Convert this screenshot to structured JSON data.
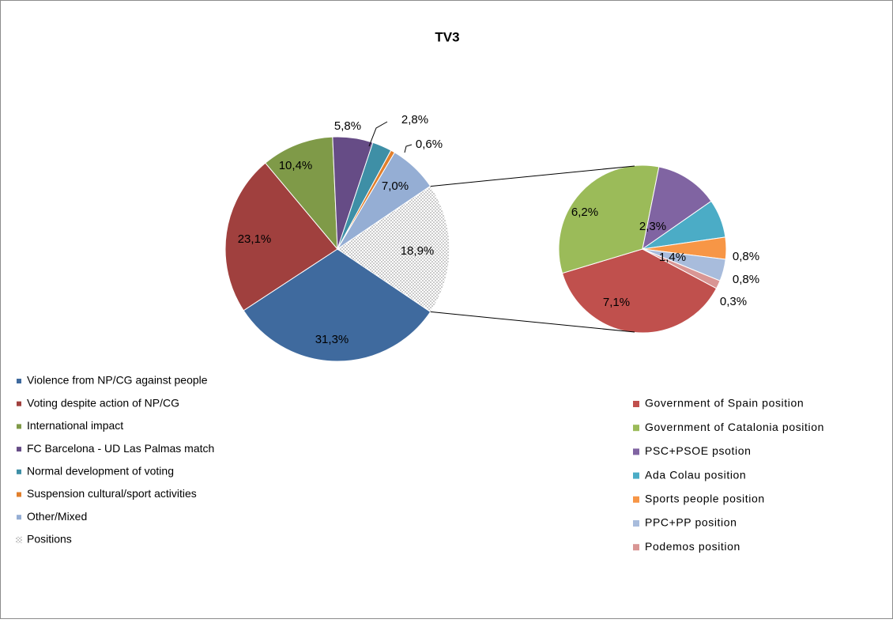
{
  "chart_data": [
    {
      "type": "pie",
      "title": "TV3",
      "categories": [
        "Violence from NP/CG against people",
        "Voting despite action of NP/CG",
        "International impact",
        "FC Barcelona - UD Las Palmas match",
        "Normal development of voting",
        "Suspension cultural/sport activities",
        "Other/Mixed",
        "Positions"
      ],
      "values": [
        31.3,
        23.1,
        10.4,
        5.8,
        2.8,
        0.6,
        7.0,
        18.9
      ],
      "value_labels": [
        "31,3%",
        "23,1%",
        "10,4%",
        "5,8%",
        "2,8%",
        "0,6%",
        "7,0%",
        "18,9%"
      ],
      "colors": [
        "#3f6a9e",
        "#a0403e",
        "#7f9a48",
        "#664c86",
        "#3e8fa6",
        "#e17f2c",
        "#95aed4",
        "dots"
      ]
    },
    {
      "type": "pie",
      "categories": [
        "Government of Spain position",
        "Government of Catalonia position",
        "PSC+PSOE psotion",
        "Ada Colau position",
        "Sports people position",
        "PPC+PP position",
        "Podemos position"
      ],
      "values": [
        7.1,
        6.2,
        2.3,
        1.4,
        0.8,
        0.8,
        0.3
      ],
      "value_labels": [
        "7,1%",
        "6,2%",
        "2,3%",
        "1,4%",
        "0,8%",
        "0,8%",
        "0,3%"
      ],
      "colors": [
        "#c0504d",
        "#9bbb59",
        "#8064a2",
        "#4bacc6",
        "#f79646",
        "#a8bcdc",
        "#d99694"
      ]
    }
  ]
}
